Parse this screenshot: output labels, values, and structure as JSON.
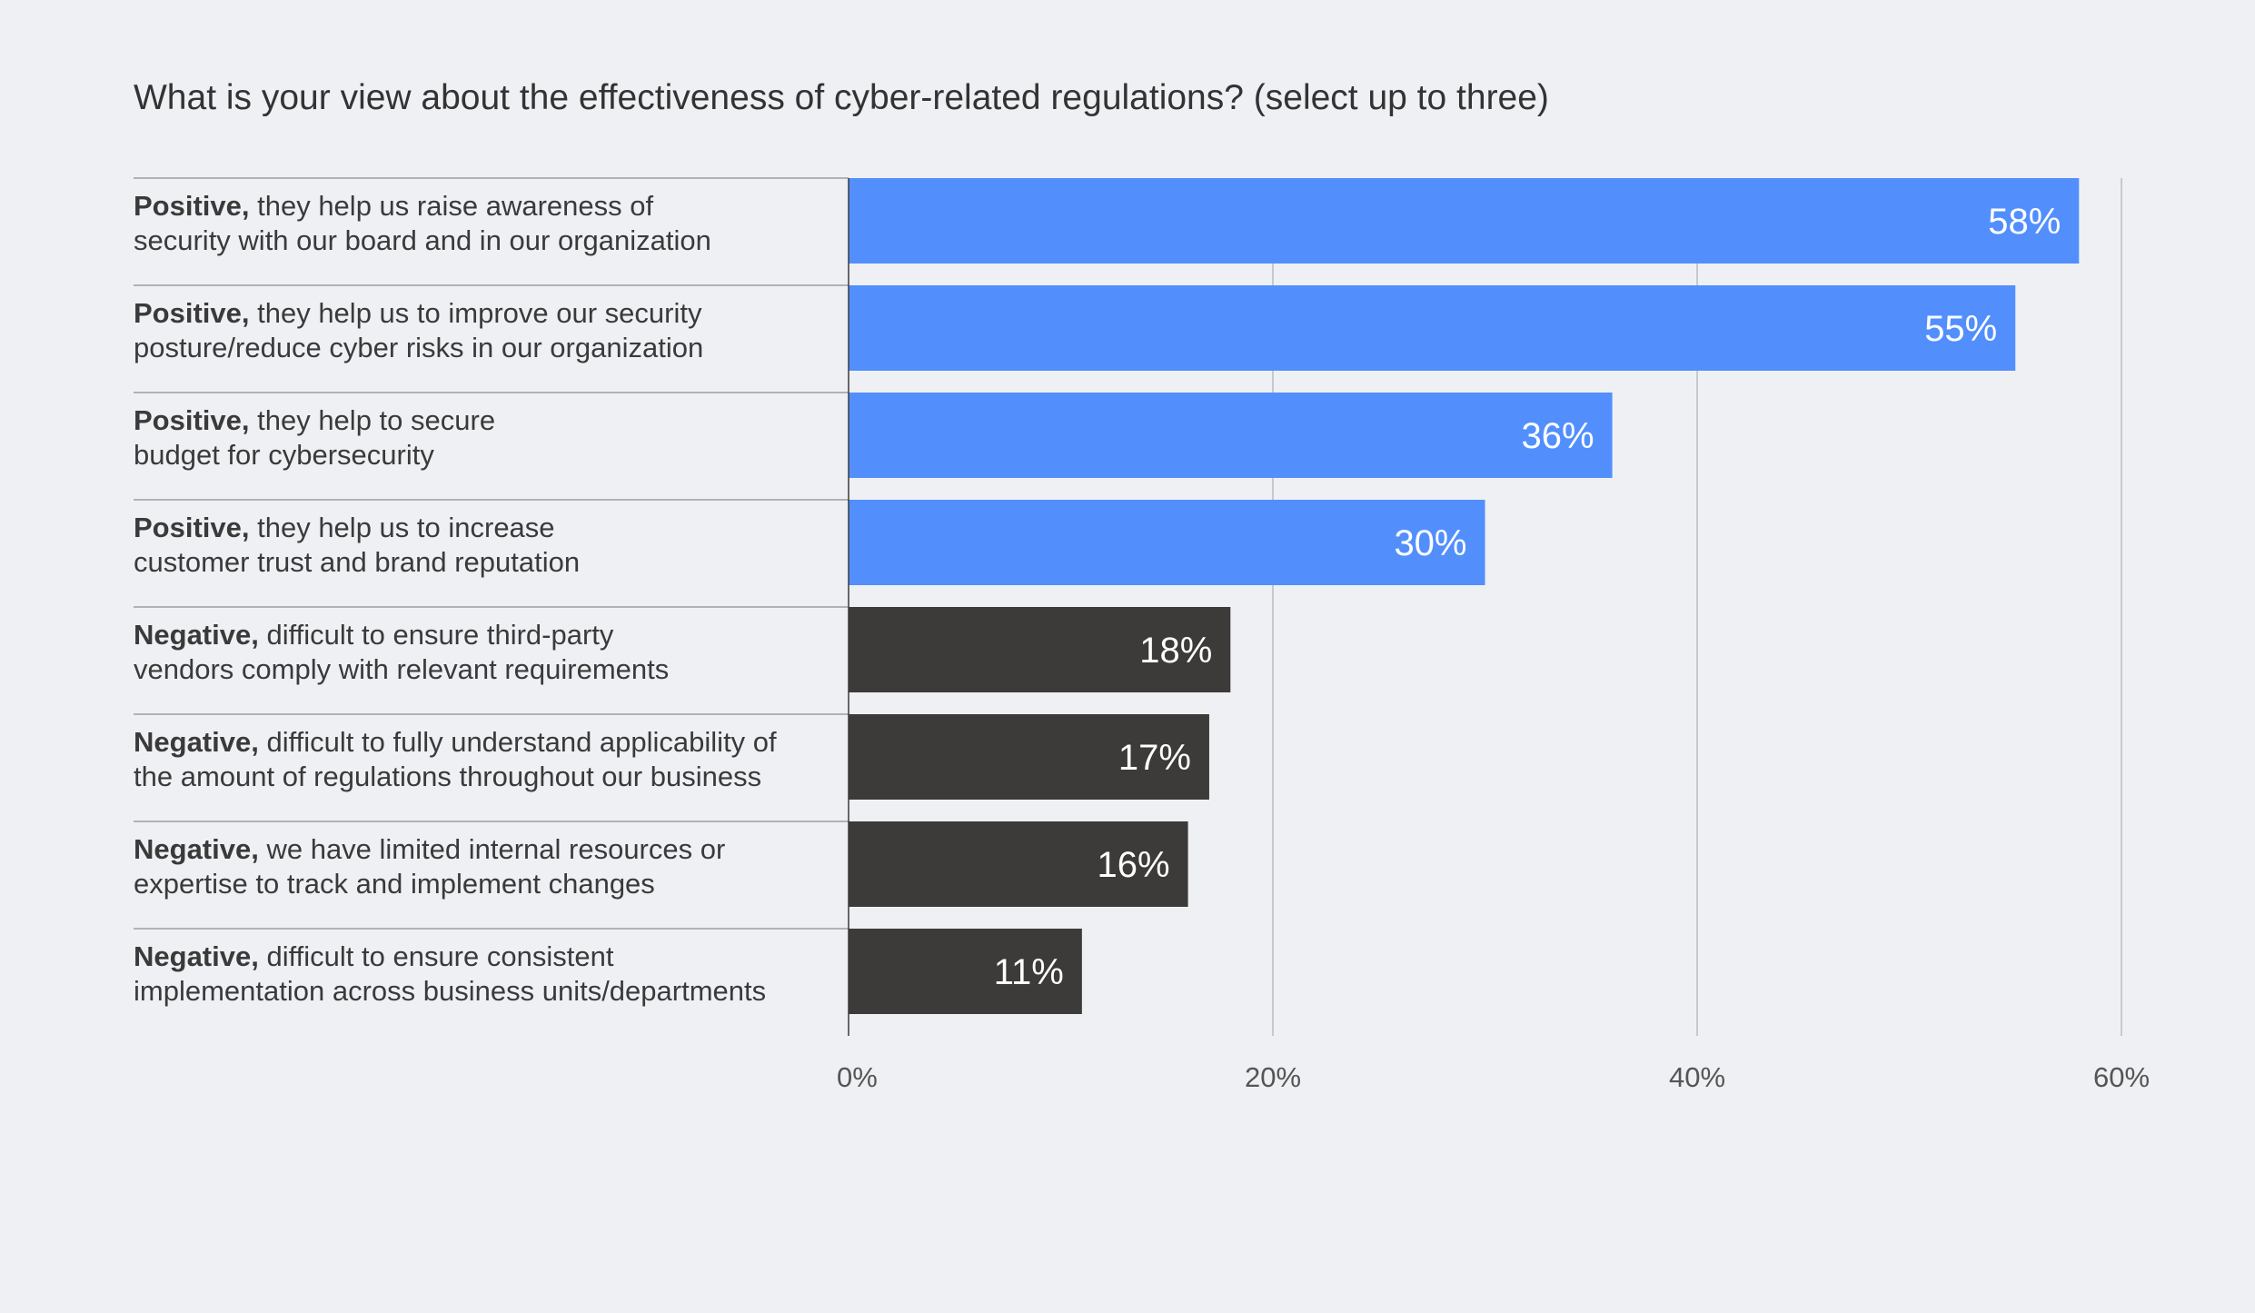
{
  "chart_data": {
    "type": "bar",
    "orientation": "horizontal",
    "title": "What is your view about the effectiveness of cyber-related regulations? (select up to three)",
    "categories": [
      {
        "bold": "Positive,",
        "line1": " they help us raise awareness of",
        "line2": "security with our board and in our organization"
      },
      {
        "bold": "Positive,",
        "line1": " they help us to improve our security",
        "line2": "posture/reduce cyber risks in our organization"
      },
      {
        "bold": "Positive,",
        "line1": " they help to secure",
        "line2": "budget for cybersecurity"
      },
      {
        "bold": "Positive,",
        "line1": " they help us to increase",
        "line2": "customer trust and brand reputation"
      },
      {
        "bold": "Negative,",
        "line1": " difficult to ensure third-party",
        "line2": "vendors comply with relevant requirements"
      },
      {
        "bold": "Negative,",
        "line1": " difficult to fully understand applicability of",
        "line2": "the amount of regulations throughout our business"
      },
      {
        "bold": "Negative,",
        "line1": " we have limited internal resources or",
        "line2": "expertise to track and implement changes"
      },
      {
        "bold": "Negative,",
        "line1": " difficult to ensure consistent",
        "line2": "implementation across business units/departments"
      }
    ],
    "values": [
      58,
      55,
      36,
      30,
      18,
      17,
      16,
      11
    ],
    "value_labels": [
      "58%",
      "55%",
      "36%",
      "30%",
      "18%",
      "17%",
      "16%",
      "11%"
    ],
    "sentiment": [
      "positive",
      "positive",
      "positive",
      "positive",
      "negative",
      "negative",
      "negative",
      "negative"
    ],
    "xlim": [
      0,
      60
    ],
    "xticks": [
      0,
      20,
      40,
      60
    ],
    "xtick_labels": [
      "0%",
      "20%",
      "40%",
      "60%"
    ],
    "grid": true,
    "legend": "none",
    "colors": {
      "positive": "#528ffd",
      "negative": "#3c3b39",
      "grid": "#b9bcc4",
      "separator": "#9a9da3",
      "axis": "#3c3b39"
    }
  }
}
